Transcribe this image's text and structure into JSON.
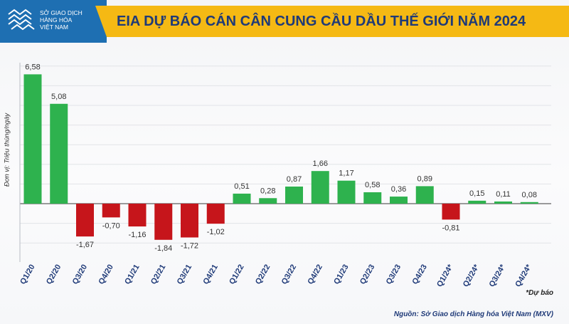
{
  "header": {
    "logo": {
      "icon": "wave-lines-icon",
      "line1": "SỞ GIAO DỊCH",
      "line2": "HÀNG HÓA",
      "line3": "VIỆT NAM"
    },
    "title": "EIA DỰ BÁO CÁN CÂN CUNG CẦU DẦU THẾ GIỚI NĂM 2024"
  },
  "footer": {
    "note": "*Dự báo",
    "source": "Nguồn: Sở Giao dịch Hàng hóa Việt Nam (MXV)"
  },
  "colors": {
    "positive": "#2eb24e",
    "negative": "#c6151b",
    "title_bar": "#f5b914",
    "title_text": "#1f3a78",
    "logo_bg": "#1e6fb2"
  },
  "chart_data": {
    "type": "bar",
    "title": "EIA DỰ BÁO CÁN CÂN CUNG CẦU DẦU THẾ GIỚI NĂM 2024",
    "ylabel": "Đơn vị: Triệu thùng/ngày",
    "xlabel": "",
    "categories": [
      "Q1/20",
      "Q2/20",
      "Q3/20",
      "Q4/20",
      "Q1/21",
      "Q2/21",
      "Q3/21",
      "Q4/21",
      "Q1/22",
      "Q2/22",
      "Q3/22",
      "Q4/22",
      "Q1/23",
      "Q2/23",
      "Q3/23",
      "Q4/23",
      "Q1/24*",
      "Q2/24*",
      "Q3/24*",
      "Q4/24*"
    ],
    "values": [
      6.58,
      5.08,
      -1.67,
      -0.7,
      -1.16,
      -1.84,
      -1.72,
      -1.02,
      0.51,
      0.28,
      0.87,
      1.66,
      1.17,
      0.58,
      0.36,
      0.89,
      -0.81,
      0.15,
      0.11,
      0.08
    ],
    "labels": [
      "6,58",
      "5,08",
      "-1,67",
      "-0,70",
      "-1,16",
      "-1,84",
      "-1,72",
      "-1,02",
      "0,51",
      "0,28",
      "0,87",
      "1,66",
      "1,17",
      "0,58",
      "0,36",
      "0,89",
      "-0,81",
      "0,15",
      "0,11",
      "0,08"
    ],
    "grid": true,
    "legend": "none"
  }
}
